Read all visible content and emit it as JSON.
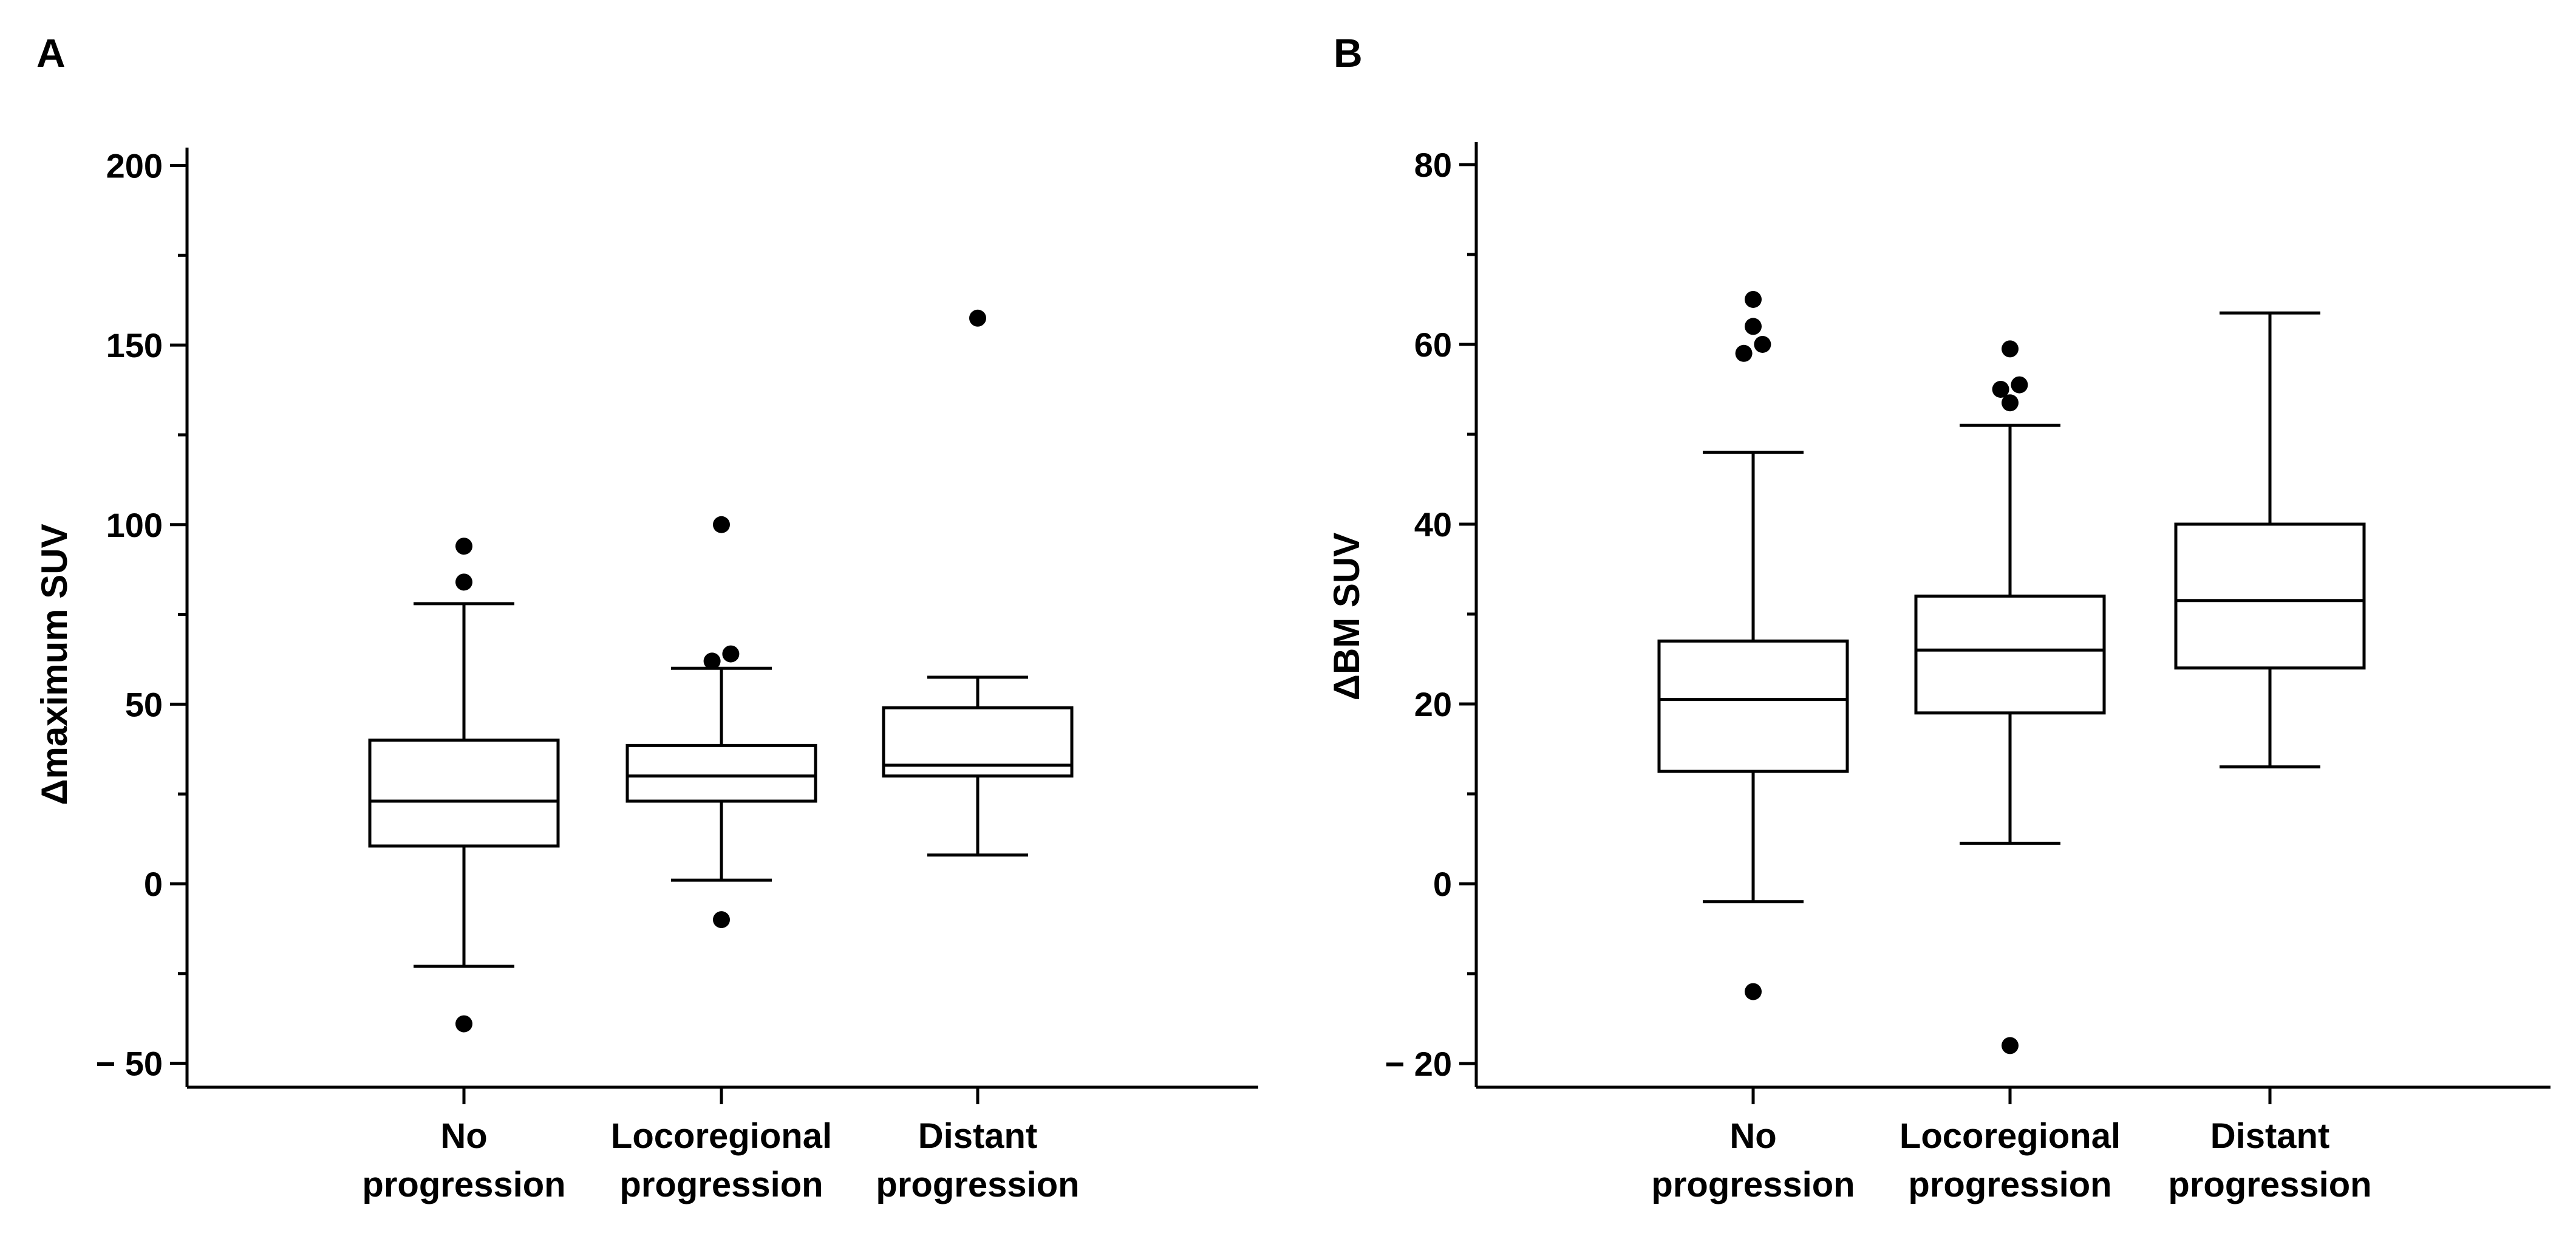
{
  "chart_data": [
    {
      "type": "box",
      "panel": "A",
      "ylabel": "Δmaximum SUV",
      "xlabel": "",
      "ylim": [
        -55,
        205
      ],
      "yticks": [
        -50,
        0,
        50,
        100,
        150,
        200
      ],
      "ytick_labels": [
        "− 50",
        "0",
        "50",
        "100",
        "150",
        "200"
      ],
      "grid": false,
      "categories": [
        {
          "line1": "No",
          "line2": "progression"
        },
        {
          "line1": "Locoregional",
          "line2": "progression"
        },
        {
          "line1": "Distant",
          "line2": "progression"
        }
      ],
      "boxes": [
        {
          "whisker_low": -23,
          "q1": 10.5,
          "median": 23,
          "q3": 40,
          "whisker_high": 78,
          "outliers": [
            {
              "v": 94,
              "dx": 0
            },
            {
              "v": 84,
              "dx": 0
            },
            {
              "v": -39,
              "dx": 0
            }
          ]
        },
        {
          "whisker_low": 1,
          "q1": 23,
          "median": 30,
          "q3": 38.5,
          "whisker_high": 60,
          "outliers": [
            {
              "v": 100,
              "dx": 0
            },
            {
              "v": 64,
              "dx": 7
            },
            {
              "v": 62,
              "dx": -7
            },
            {
              "v": -10,
              "dx": 0
            }
          ]
        },
        {
          "whisker_low": 8,
          "q1": 30,
          "median": 33,
          "q3": 49,
          "whisker_high": 57.5,
          "outliers": [
            {
              "v": 157.5,
              "dx": 0
            }
          ]
        }
      ]
    },
    {
      "type": "box",
      "panel": "B",
      "ylabel": "ΔBM SUV",
      "xlabel": "",
      "ylim": [
        -22.5,
        82.5
      ],
      "yticks": [
        -20,
        0,
        20,
        40,
        60,
        80
      ],
      "ytick_labels": [
        "− 20",
        "0",
        "20",
        "40",
        "60",
        "80"
      ],
      "grid": false,
      "categories": [
        {
          "line1": "No",
          "line2": "progression"
        },
        {
          "line1": "Locoregional",
          "line2": "progression"
        },
        {
          "line1": "Distant",
          "line2": "progression"
        }
      ],
      "boxes": [
        {
          "whisker_low": -2,
          "q1": 12.5,
          "median": 20.5,
          "q3": 27,
          "whisker_high": 48,
          "outliers": [
            {
              "v": 65,
              "dx": 0
            },
            {
              "v": 62,
              "dx": 0
            },
            {
              "v": 60,
              "dx": 7
            },
            {
              "v": 59,
              "dx": -7
            },
            {
              "v": -12,
              "dx": 0
            }
          ]
        },
        {
          "whisker_low": 4.5,
          "q1": 19,
          "median": 26,
          "q3": 32,
          "whisker_high": 51,
          "outliers": [
            {
              "v": 59.5,
              "dx": 0
            },
            {
              "v": 55.5,
              "dx": 7
            },
            {
              "v": 55,
              "dx": -7
            },
            {
              "v": 53.5,
              "dx": 0
            },
            {
              "v": -18,
              "dx": 0
            }
          ]
        },
        {
          "whisker_low": 13,
          "q1": 24,
          "median": 31.5,
          "q3": 40,
          "whisker_high": 63.5,
          "outliers": []
        }
      ]
    }
  ]
}
